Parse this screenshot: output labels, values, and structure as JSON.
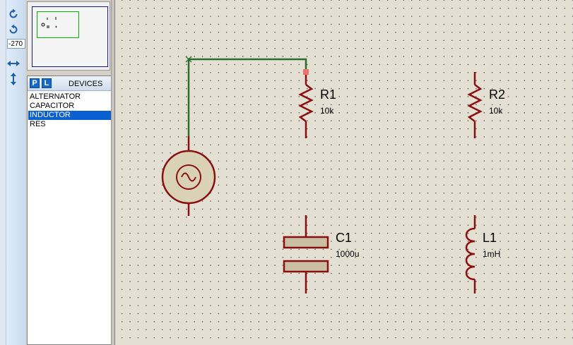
{
  "toolbar": {
    "rotation_value": "-270",
    "tools": [
      "rotate-clockwise",
      "rotate-anticlockwise",
      "mirror-horizontal",
      "mirror-vertical"
    ]
  },
  "devices": {
    "p_label": "P",
    "l_label": "L",
    "title": "DEVICES",
    "items": [
      "ALTERNATOR",
      "CAPACITOR",
      "INDUCTOR",
      "RES"
    ],
    "selected": "INDUCTOR"
  },
  "components": {
    "r1": {
      "ref": "R1",
      "value": "10k"
    },
    "r2": {
      "ref": "R2",
      "value": "10k"
    },
    "c1": {
      "ref": "C1",
      "value": "1000u"
    },
    "l1": {
      "ref": "L1",
      "value": "1mH"
    }
  },
  "colors": {
    "component": "#8b0f0f",
    "wire": "#2e6b2e",
    "source_fill": "#d9d2b6",
    "cap_fill": "#c9c0a4",
    "selection_marker": "#f07070",
    "canvas_bg": "#e3dfd3"
  }
}
